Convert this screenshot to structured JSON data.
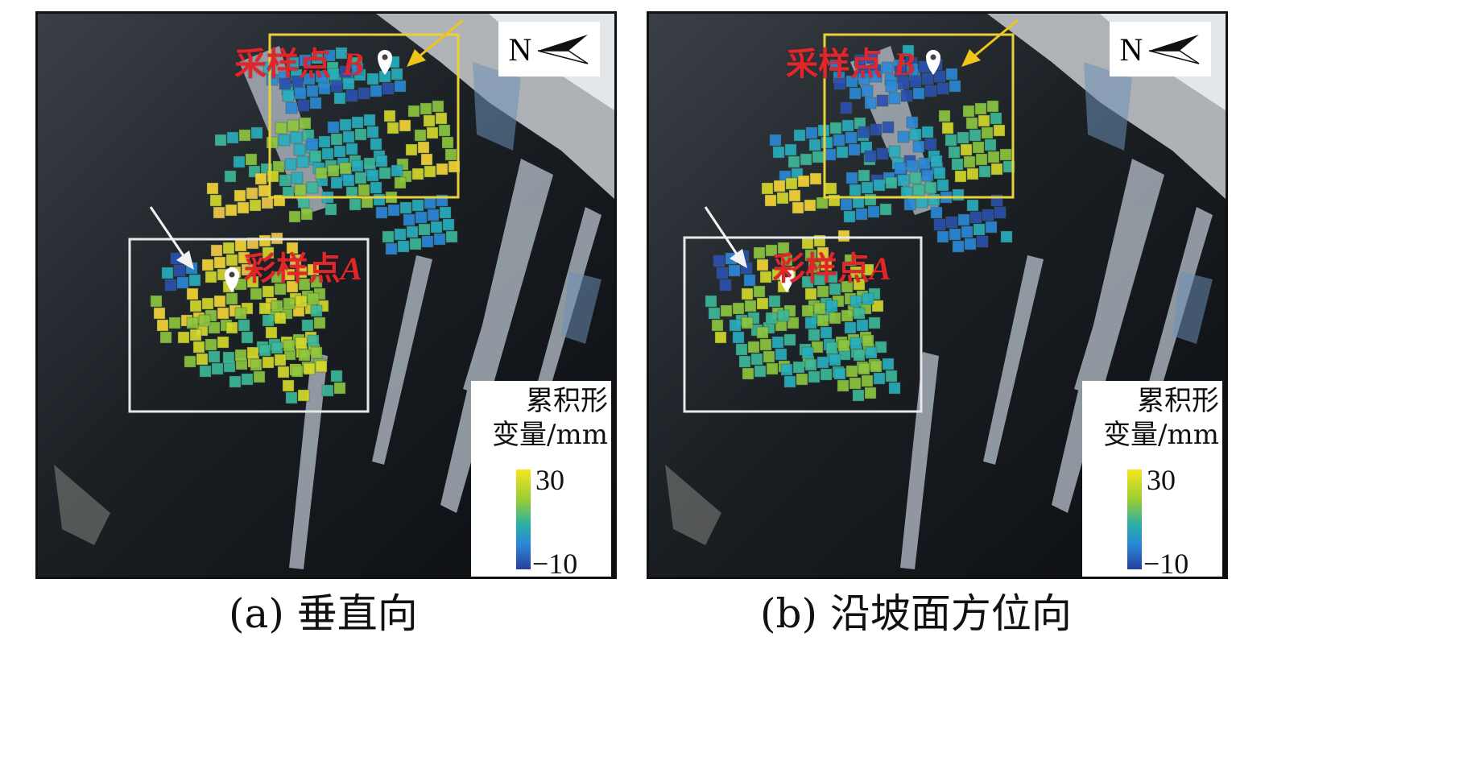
{
  "panels": [
    {
      "id": "a",
      "caption": "(a) 垂直向",
      "north_label": "N",
      "site_b_label": "采样点",
      "site_b_letter": "B",
      "site_a_label": "彩样点",
      "site_a_letter": "A",
      "legend_title": "累积形\n变量/mm",
      "legend_max": "30",
      "legend_min": "−10",
      "colors": {
        "white_box": "#e8e8e8",
        "yellow_box": "#e6d33a",
        "white_arrow": "#f2f2f2",
        "yellow_arrow": "#f0c419"
      }
    },
    {
      "id": "b",
      "caption": "(b) 沿坡面方位向",
      "north_label": "N",
      "site_b_label": "采样点",
      "site_b_letter": "B",
      "site_a_label": "彩样点",
      "site_a_letter": "A",
      "legend_title": "累积形\n变量/mm",
      "legend_max": "30",
      "legend_min": "−10",
      "colors": {
        "white_box": "#e8e8e8",
        "yellow_box": "#e6d33a",
        "white_arrow": "#f2f2f2",
        "yellow_arrow": "#f0c419"
      }
    }
  ],
  "colorbar": {
    "min": -10,
    "max": 30,
    "unit": "mm",
    "stops": [
      "#263f9e",
      "#2a88d8",
      "#2ab0a6",
      "#9acd32",
      "#f7e51f"
    ]
  }
}
